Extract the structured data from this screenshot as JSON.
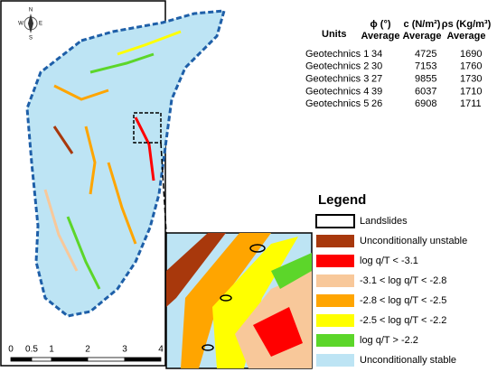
{
  "compass": {
    "n": "N",
    "s": "S",
    "e": "E",
    "w": "W"
  },
  "table": {
    "units": "Units",
    "columns": [
      {
        "name": "ϕ (°)",
        "sub": "Average"
      },
      {
        "name": "c (N/m²)",
        "sub": "Average"
      },
      {
        "name": "ρs (Kg/m³)",
        "sub": "Average"
      }
    ],
    "rows": [
      [
        "Geotechnics 1",
        34,
        4725,
        1690
      ],
      [
        "Geotechnics 2",
        30,
        7153,
        1760
      ],
      [
        "Geotechnics 3",
        27,
        9855,
        1730
      ],
      [
        "Geotechnics 4",
        39,
        6037,
        1710
      ],
      [
        "Geotechnics 5",
        26,
        6908,
        1711
      ]
    ]
  },
  "legend": {
    "title": "Legend",
    "items": [
      {
        "label": "Landslides",
        "color": "#ffffff"
      },
      {
        "label": "Unconditionally unstable",
        "color": "#a8380c"
      },
      {
        "label": "log q/T < -3.1",
        "color": "#ff0000"
      },
      {
        "label": "-3.1 < log q/T < -2.8",
        "color": "#f8c89a"
      },
      {
        "label": "-2.8 < log q/T < -2.5",
        "color": "#ffa500"
      },
      {
        "label": "-2.5 < log q/T < -2.2",
        "color": "#ffff00"
      },
      {
        "label": "log q/T > -2.2",
        "color": "#5cd62a"
      },
      {
        "label": "Unconditionally stable",
        "color": "#bde4f4"
      }
    ]
  },
  "scale_bar": {
    "labels": [
      "0",
      "0.5",
      "1",
      "2",
      "3",
      "4"
    ]
  }
}
